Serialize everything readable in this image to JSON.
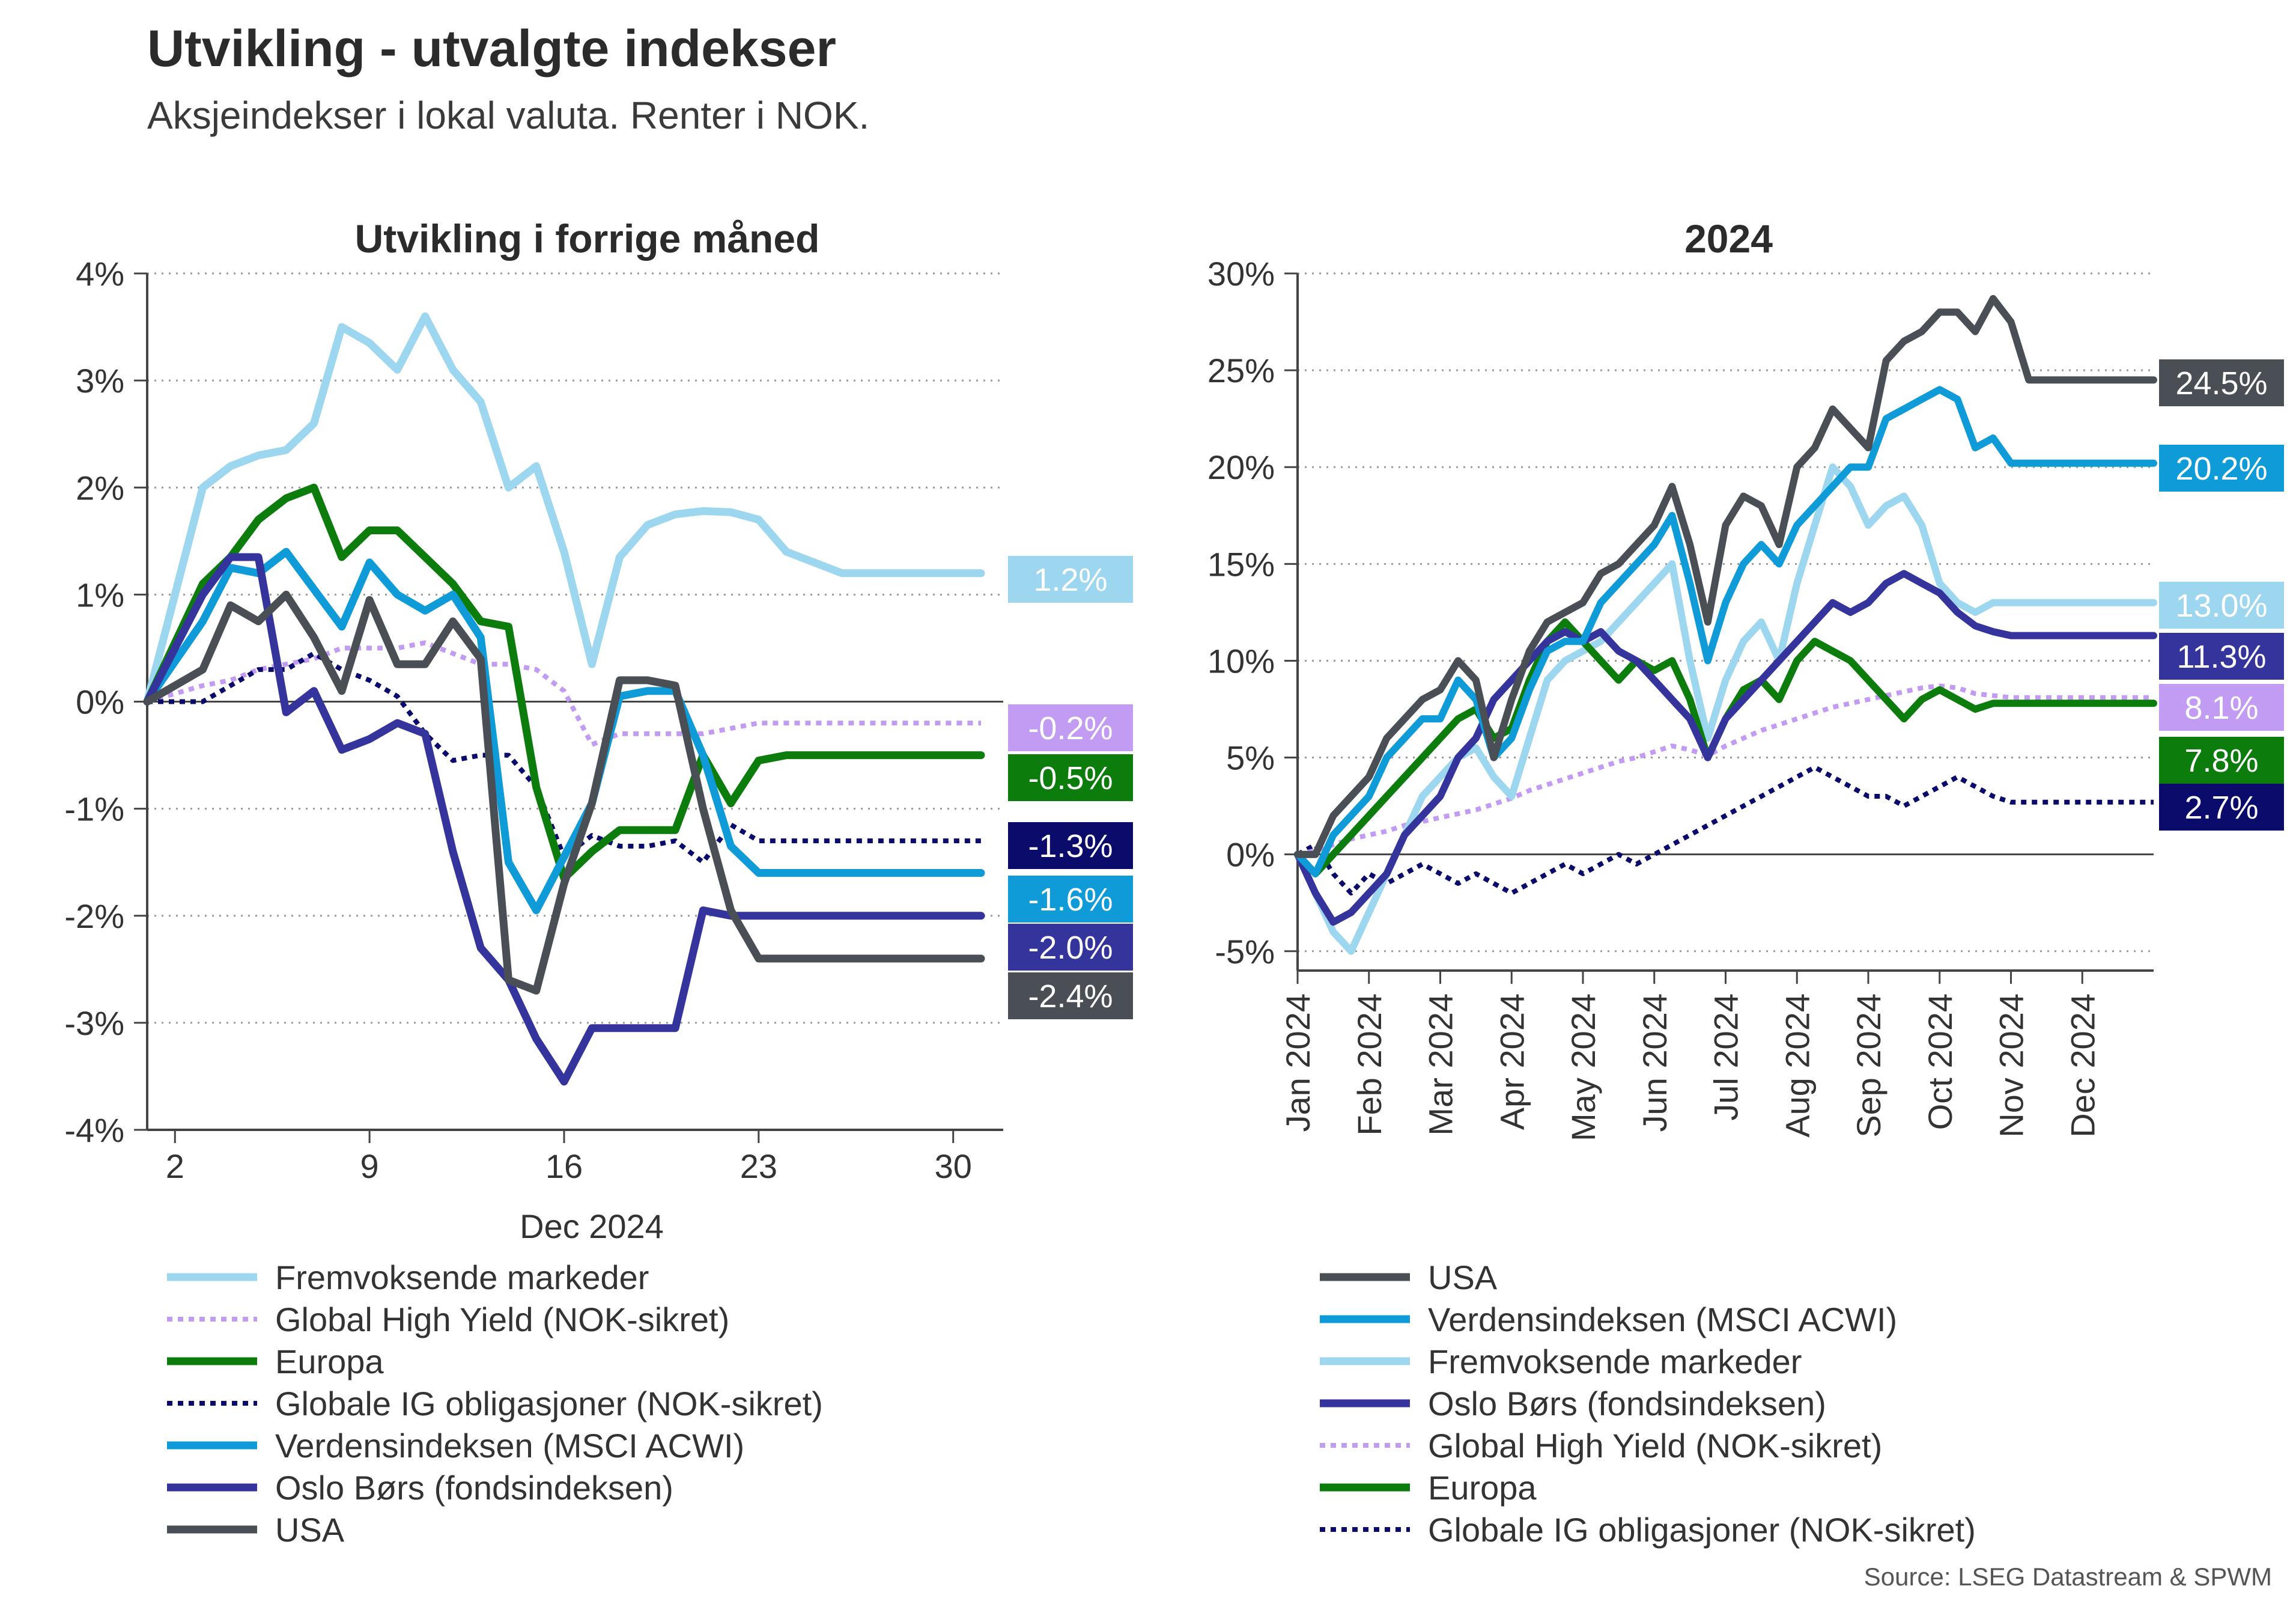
{
  "title": "Utvikling - utvalgte indekser",
  "subtitle": "Aksjeindekser i lokal valuta. Renter i NOK.",
  "source": "Source: LSEG Datastream & SPWM",
  "colors": {
    "em": "#9dd7ef",
    "hy": "#c29cf2",
    "eu": "#0c7d0c",
    "ig": "#0b0b6b",
    "acwi": "#0e9bd8",
    "oslo": "#34349c",
    "usa": "#4a4f56"
  },
  "chart_data": [
    {
      "type": "line",
      "title": "Utvikling i forrige måned",
      "xlabel": "Dec 2024",
      "ylabel": "",
      "ylim": [
        -4,
        4
      ],
      "yticks": [
        "4%",
        "3%",
        "2%",
        "1%",
        "0%",
        "-1%",
        "-2%",
        "-3%",
        "-4%"
      ],
      "xtick_days": [
        2,
        9,
        16,
        23,
        30
      ],
      "xtick_labels": [
        "2",
        "9",
        "16",
        "23",
        "30"
      ],
      "x": [
        1,
        3,
        4,
        5,
        6,
        7,
        8,
        9,
        10,
        11,
        12,
        13,
        14,
        15,
        16,
        17,
        18,
        19,
        20,
        21,
        22,
        23,
        24,
        25,
        26,
        27,
        28,
        29,
        30,
        31
      ],
      "series": [
        {
          "key": "em",
          "name": "Fremvoksende markeder",
          "style": "solid",
          "end_label": "1.2%",
          "values": [
            0,
            2.0,
            2.2,
            2.3,
            2.35,
            2.6,
            3.5,
            3.35,
            3.1,
            3.6,
            3.1,
            2.8,
            2.0,
            2.2,
            1.4,
            0.35,
            1.35,
            1.65,
            1.75,
            1.78,
            1.77,
            1.7,
            1.4,
            1.3,
            1.2,
            1.2,
            1.2,
            1.2,
            1.2,
            1.2
          ]
        },
        {
          "key": "hy",
          "name": "Global High Yield (NOK-sikret)",
          "style": "dotted",
          "end_label": "-0.2%",
          "values": [
            0,
            0.15,
            0.2,
            0.3,
            0.35,
            0.4,
            0.5,
            0.5,
            0.5,
            0.55,
            0.45,
            0.35,
            0.35,
            0.3,
            0.1,
            -0.4,
            -0.3,
            -0.3,
            -0.3,
            -0.3,
            -0.25,
            -0.2,
            -0.2,
            -0.2,
            -0.2,
            -0.2,
            -0.2,
            -0.2,
            -0.2,
            -0.2
          ]
        },
        {
          "key": "eu",
          "name": "Europa",
          "style": "solid",
          "end_label": "-0.5%",
          "values": [
            0,
            1.1,
            1.35,
            1.7,
            1.9,
            2.0,
            1.35,
            1.6,
            1.6,
            1.35,
            1.1,
            0.75,
            0.7,
            -0.8,
            -1.65,
            -1.4,
            -1.2,
            -1.2,
            -1.2,
            -0.5,
            -0.95,
            -0.55,
            -0.5,
            -0.5,
            -0.5,
            -0.5,
            -0.5,
            -0.5,
            -0.5,
            -0.5
          ]
        },
        {
          "key": "ig",
          "name": "Globale IG obligasjoner (NOK-sikret)",
          "style": "dotted",
          "end_label": "-1.3%",
          "values": [
            0,
            0.0,
            0.15,
            0.3,
            0.3,
            0.45,
            0.3,
            0.2,
            0.05,
            -0.3,
            -0.55,
            -0.5,
            -0.5,
            -0.8,
            -1.45,
            -1.25,
            -1.35,
            -1.35,
            -1.3,
            -1.5,
            -1.15,
            -1.3,
            -1.3,
            -1.3,
            -1.3,
            -1.3,
            -1.3,
            -1.3,
            -1.3,
            -1.3
          ]
        },
        {
          "key": "acwi",
          "name": "Verdensindeksen (MSCI ACWI)",
          "style": "solid",
          "end_label": "-1.6%",
          "values": [
            0,
            0.75,
            1.25,
            1.2,
            1.4,
            1.05,
            0.7,
            1.3,
            1.0,
            0.85,
            1.0,
            0.6,
            -1.5,
            -1.95,
            -1.45,
            -0.95,
            0.05,
            0.1,
            0.1,
            -0.5,
            -1.35,
            -1.6,
            -1.6,
            -1.6,
            -1.6,
            -1.6,
            -1.6,
            -1.6,
            -1.6,
            -1.6
          ]
        },
        {
          "key": "oslo",
          "name": "Oslo Børs (fondsindeksen)",
          "style": "solid",
          "end_label": "-2.0%",
          "values": [
            0,
            1.0,
            1.35,
            1.35,
            -0.1,
            0.1,
            -0.45,
            -0.35,
            -0.2,
            -0.3,
            -1.4,
            -2.3,
            -2.6,
            -3.15,
            -3.55,
            -3.05,
            -3.05,
            -3.05,
            -3.05,
            -1.95,
            -2.0,
            -2.0,
            -2.0,
            -2.0,
            -2.0,
            -2.0,
            -2.0,
            -2.0,
            -2.0,
            -2.0
          ]
        },
        {
          "key": "usa",
          "name": "USA",
          "style": "solid",
          "end_label": "-2.4%",
          "values": [
            0,
            0.3,
            0.9,
            0.75,
            1.0,
            0.6,
            0.1,
            0.95,
            0.35,
            0.35,
            0.75,
            0.4,
            -2.6,
            -2.7,
            -1.7,
            -0.95,
            0.2,
            0.2,
            0.15,
            -1.0,
            -1.95,
            -2.4,
            -2.4,
            -2.4,
            -2.4,
            -2.4,
            -2.4,
            -2.4,
            -2.4,
            -2.4
          ]
        }
      ]
    },
    {
      "type": "line",
      "title": "2024",
      "xlabel": "",
      "ylabel": "",
      "ylim": [
        -6,
        30
      ],
      "yticks": [
        "30%",
        "25%",
        "20%",
        "15%",
        "10%",
        "5%",
        "0%",
        "-5%"
      ],
      "xtick_labels": [
        "Jan 2024",
        "Feb 2024",
        "Mar 2024",
        "Apr 2024",
        "May 2024",
        "Jun 2024",
        "Jul 2024",
        "Aug 2024",
        "Sep 2024",
        "Oct 2024",
        "Nov 2024",
        "Dec 2024"
      ],
      "month_index": [
        0,
        0.25,
        0.5,
        0.75,
        1,
        1.25,
        1.5,
        1.75,
        2,
        2.25,
        2.5,
        2.75,
        3,
        3.25,
        3.5,
        3.75,
        4,
        4.25,
        4.5,
        4.75,
        5,
        5.25,
        5.5,
        5.75,
        6,
        6.25,
        6.5,
        6.75,
        7,
        7.25,
        7.5,
        7.75,
        8,
        8.25,
        8.5,
        8.75,
        9,
        9.25,
        9.5,
        9.75,
        10,
        10.25,
        10.5,
        10.75,
        11,
        11.25,
        11.5,
        11.75,
        12
      ],
      "series": [
        {
          "key": "usa",
          "name": "USA",
          "style": "solid",
          "end_label": "24.5%",
          "values": [
            0,
            0,
            2,
            3,
            4,
            6,
            7,
            8,
            8.5,
            10,
            9,
            5,
            8,
            10.5,
            12,
            12.5,
            13,
            14.5,
            15,
            16,
            17,
            19,
            16,
            12,
            17,
            18.5,
            18,
            16,
            20,
            21,
            23,
            22,
            21,
            25.5,
            26.5,
            27,
            28,
            28,
            27,
            28.7,
            27.5,
            24.5,
            24.5,
            24.5,
            24.5,
            24.5,
            24.5,
            24.5,
            24.5
          ]
        },
        {
          "key": "acwi",
          "name": "Verdensindeksen (MSCI ACWI)",
          "style": "solid",
          "end_label": "20.2%",
          "values": [
            0,
            -1,
            1,
            2,
            3,
            5,
            6,
            7,
            7,
            9,
            8,
            5,
            6,
            8.5,
            10.5,
            11,
            11,
            13,
            14,
            15,
            16,
            17.5,
            14,
            10,
            13,
            15,
            16,
            15,
            17,
            18,
            19,
            20,
            20,
            22.5,
            23,
            23.5,
            24,
            23.5,
            21,
            21.5,
            20.2,
            20.2,
            20.2,
            20.2,
            20.2,
            20.2,
            20.2,
            20.2,
            20.2
          ]
        },
        {
          "key": "em",
          "name": "Fremvoksende markeder",
          "style": "solid",
          "end_label": "13.0%",
          "values": [
            0,
            -2,
            -4,
            -5,
            -3,
            -1,
            1,
            3,
            4,
            5,
            5.5,
            4,
            3,
            6,
            9,
            10,
            10.5,
            11,
            12,
            13,
            14,
            15,
            10,
            6,
            9,
            11,
            12,
            10,
            14,
            17,
            20,
            19,
            17,
            18,
            18.5,
            17,
            14,
            13,
            12.5,
            13,
            13,
            13,
            13,
            13,
            13,
            13,
            13,
            13,
            13
          ]
        },
        {
          "key": "oslo",
          "name": "Oslo Børs (fondsindeksen)",
          "style": "solid",
          "end_label": "11.3%",
          "values": [
            0,
            -2,
            -3.5,
            -3,
            -2,
            -1,
            1,
            2,
            3,
            5,
            6,
            8,
            9,
            10,
            11,
            11.5,
            11,
            11.5,
            10.5,
            10,
            9,
            8,
            7,
            5,
            7,
            8,
            9,
            10,
            11,
            12,
            13,
            12.5,
            13,
            14,
            14.5,
            14,
            13.5,
            12.5,
            11.8,
            11.5,
            11.3,
            11.3,
            11.3,
            11.3,
            11.3,
            11.3,
            11.3,
            11.3,
            11.3
          ]
        },
        {
          "key": "hy",
          "name": "Global High Yield (NOK-sikret)",
          "style": "dotted",
          "end_label": "8.1%",
          "values": [
            0,
            0.2,
            0.5,
            0.8,
            1.0,
            1.2,
            1.5,
            1.7,
            1.9,
            2.1,
            2.3,
            2.6,
            2.9,
            3.3,
            3.6,
            3.9,
            4.2,
            4.5,
            4.8,
            5.0,
            5.3,
            5.6,
            5.4,
            5.1,
            5.6,
            6.0,
            6.4,
            6.7,
            7.0,
            7.3,
            7.6,
            7.8,
            8.0,
            8.2,
            8.4,
            8.6,
            8.7,
            8.6,
            8.3,
            8.2,
            8.1,
            8.1,
            8.1,
            8.1,
            8.1,
            8.1,
            8.1,
            8.1,
            8.1
          ]
        },
        {
          "key": "eu",
          "name": "Europa",
          "style": "solid",
          "end_label": "7.8%",
          "values": [
            0,
            -1,
            0,
            1,
            2,
            3,
            4,
            5,
            6,
            7,
            7.5,
            6,
            6.5,
            9,
            11,
            12,
            11,
            10,
            9,
            10,
            9.5,
            10,
            8,
            5,
            7,
            8.5,
            9,
            8,
            10,
            11,
            10.5,
            10,
            9,
            8,
            7,
            8,
            8.5,
            8,
            7.5,
            7.8,
            7.8,
            7.8,
            7.8,
            7.8,
            7.8,
            7.8,
            7.8,
            7.8,
            7.8
          ]
        },
        {
          "key": "ig",
          "name": "Globale IG obligasjoner (NOK-sikret)",
          "style": "dotted",
          "end_label": "2.7%",
          "values": [
            0,
            0.5,
            -1,
            -2,
            -1,
            -1.5,
            -1,
            -0.5,
            -1,
            -1.5,
            -1,
            -1.5,
            -2,
            -1.5,
            -1,
            -0.5,
            -1,
            -0.5,
            0,
            -0.5,
            0,
            0.5,
            1,
            1.5,
            2,
            2.5,
            3,
            3.5,
            4,
            4.5,
            4,
            3.5,
            3,
            3,
            2.5,
            3,
            3.5,
            4,
            3.5,
            3,
            2.7,
            2.7,
            2.7,
            2.7,
            2.7,
            2.7,
            2.7,
            2.7,
            2.7
          ]
        }
      ]
    }
  ]
}
